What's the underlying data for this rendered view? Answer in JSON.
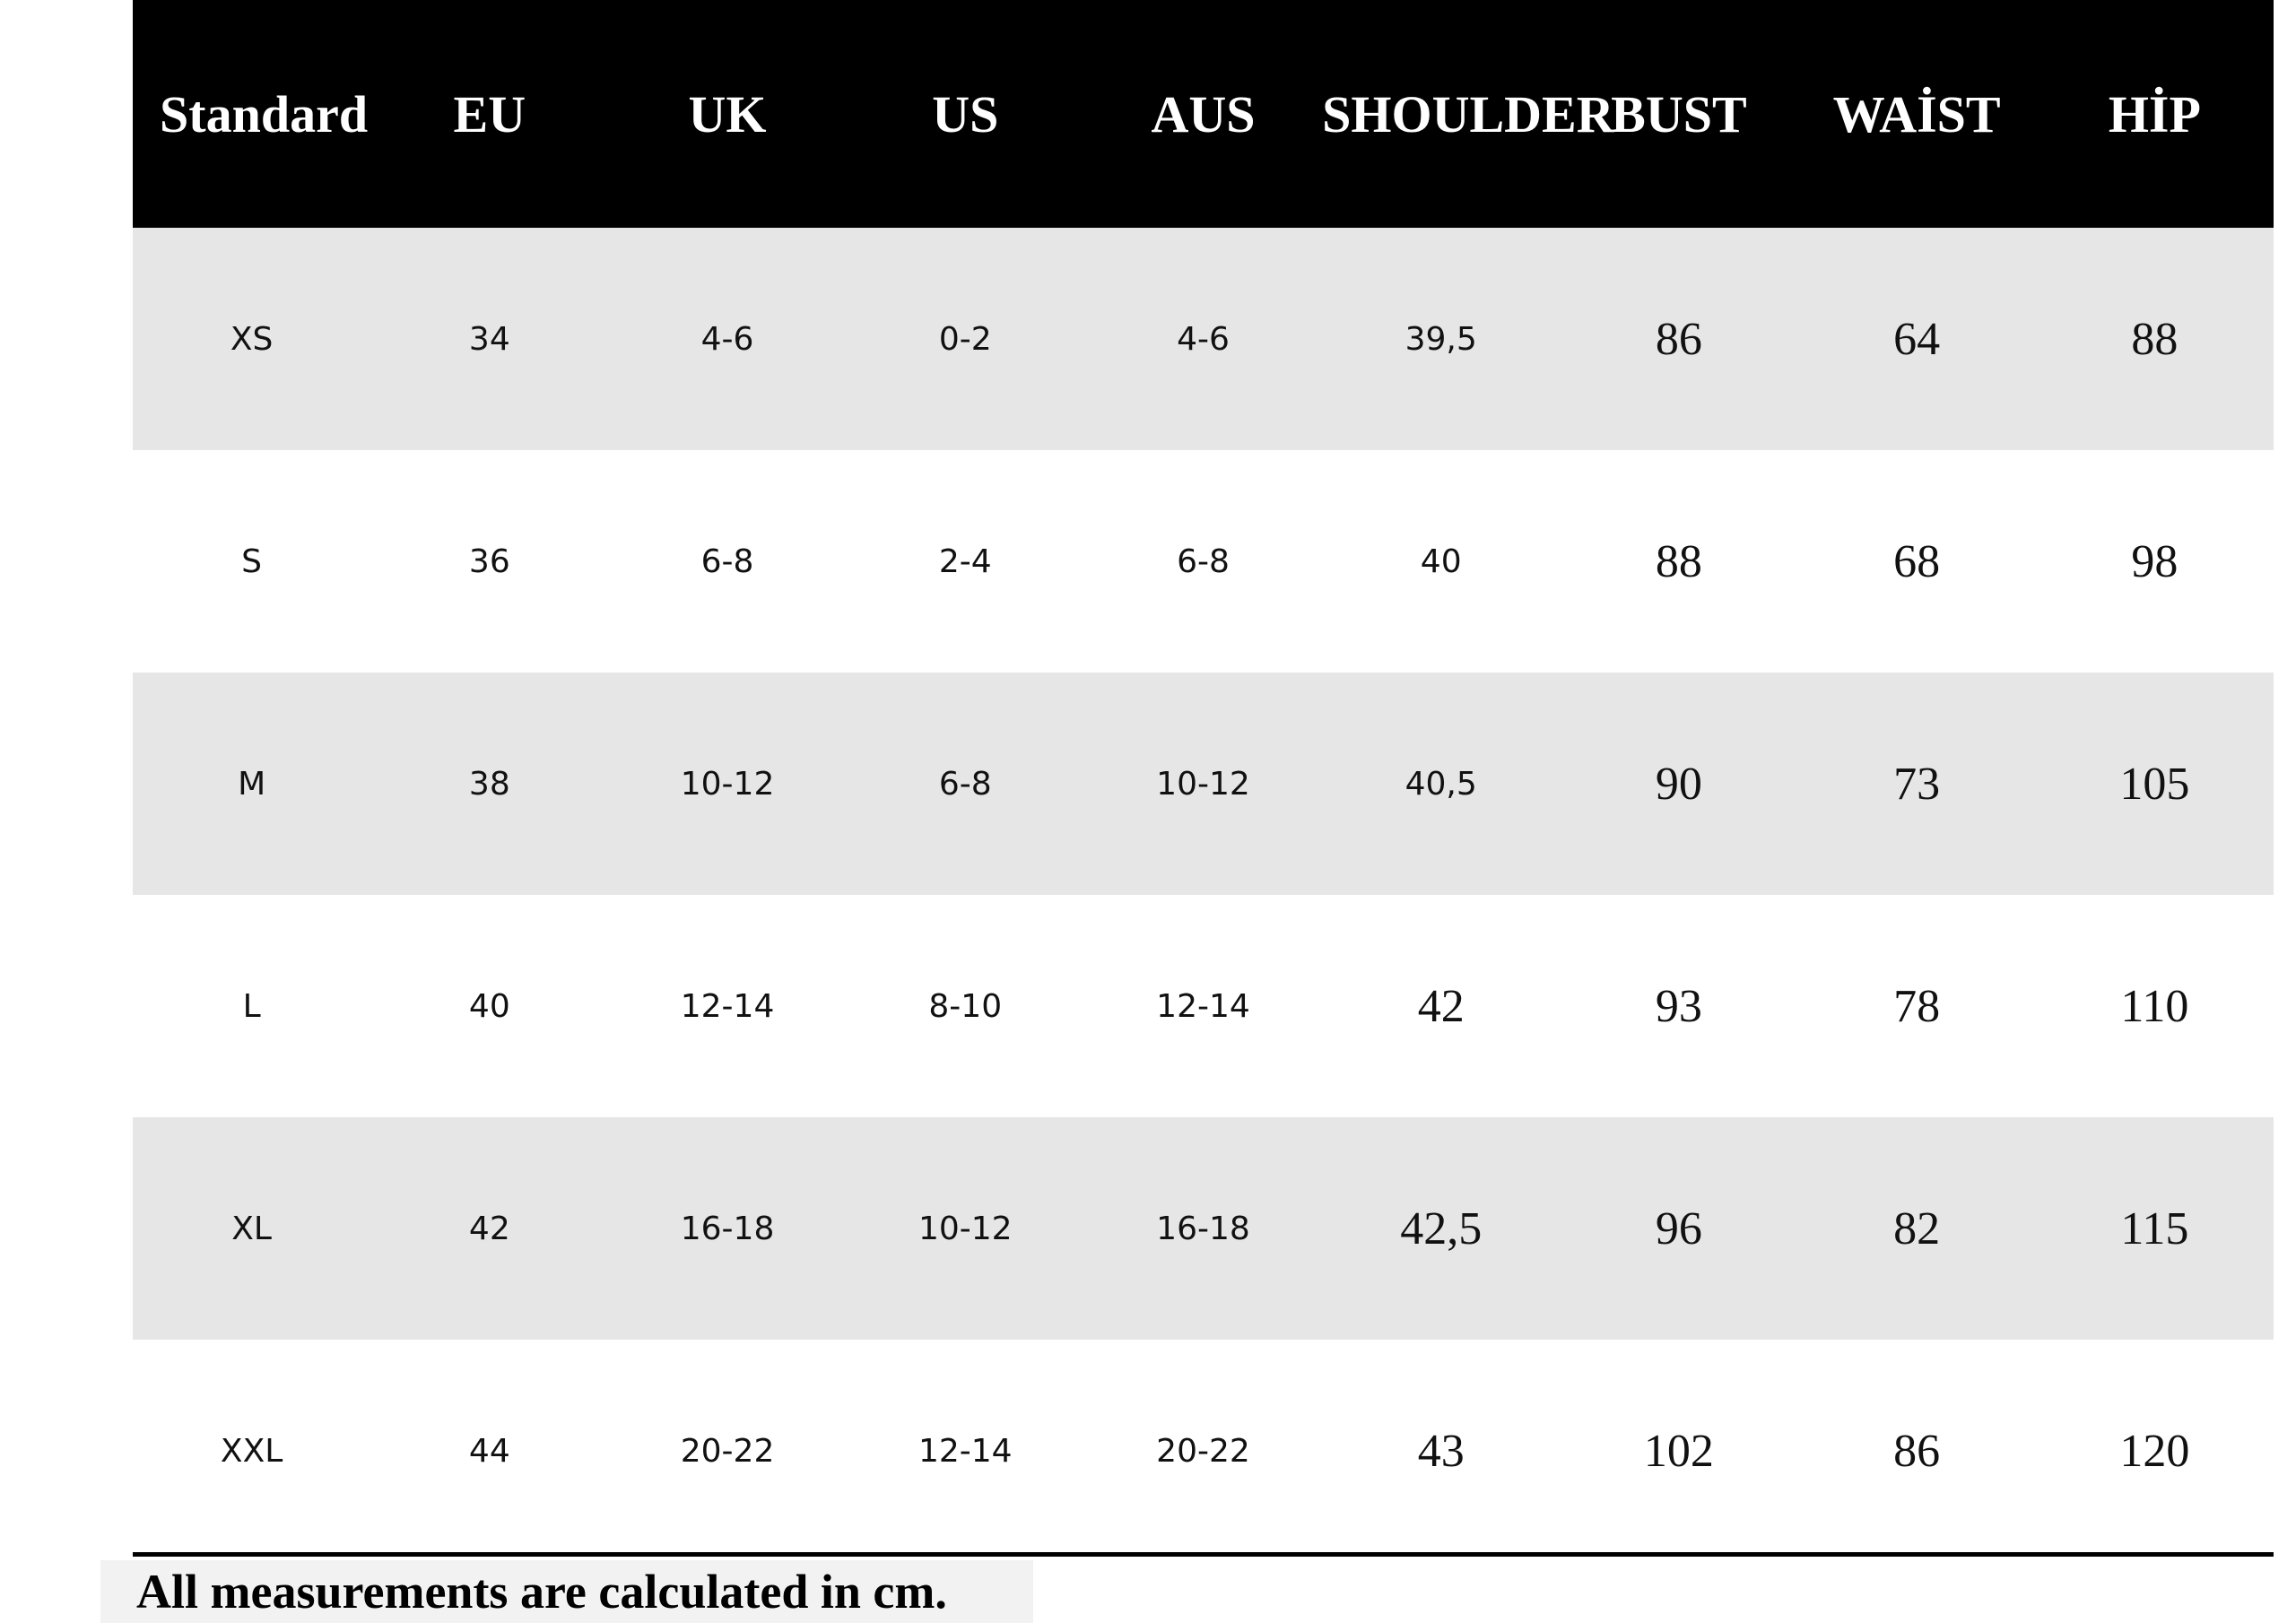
{
  "table": {
    "header": [
      "Standard",
      "EU",
      "UK",
      "US",
      "AUS",
      "SHOULDER",
      "BUST",
      "WAİST",
      "HİP"
    ],
    "rows": [
      [
        "XS",
        "34",
        "4-6",
        "0-2",
        "4-6",
        "39,5",
        "86",
        "64",
        "88"
      ],
      [
        "S",
        "36",
        "6-8",
        "2-4",
        "6-8",
        "40",
        "88",
        "68",
        "98"
      ],
      [
        "M",
        "38",
        "10-12",
        "6-8",
        "10-12",
        "40,5",
        "90",
        "73",
        "105"
      ],
      [
        "L",
        "40",
        "12-14",
        "8-10",
        "12-14",
        "42",
        "93",
        "78",
        "110"
      ],
      [
        "XL",
        "42",
        "16-18",
        "10-12",
        "16-18",
        "42,5",
        "96",
        "82",
        "115"
      ],
      [
        "XXL",
        "44",
        "20-22",
        "12-14",
        "20-22",
        "43",
        "102",
        "86",
        "120"
      ]
    ]
  },
  "footer": "All measurements  are calculated in cm."
}
